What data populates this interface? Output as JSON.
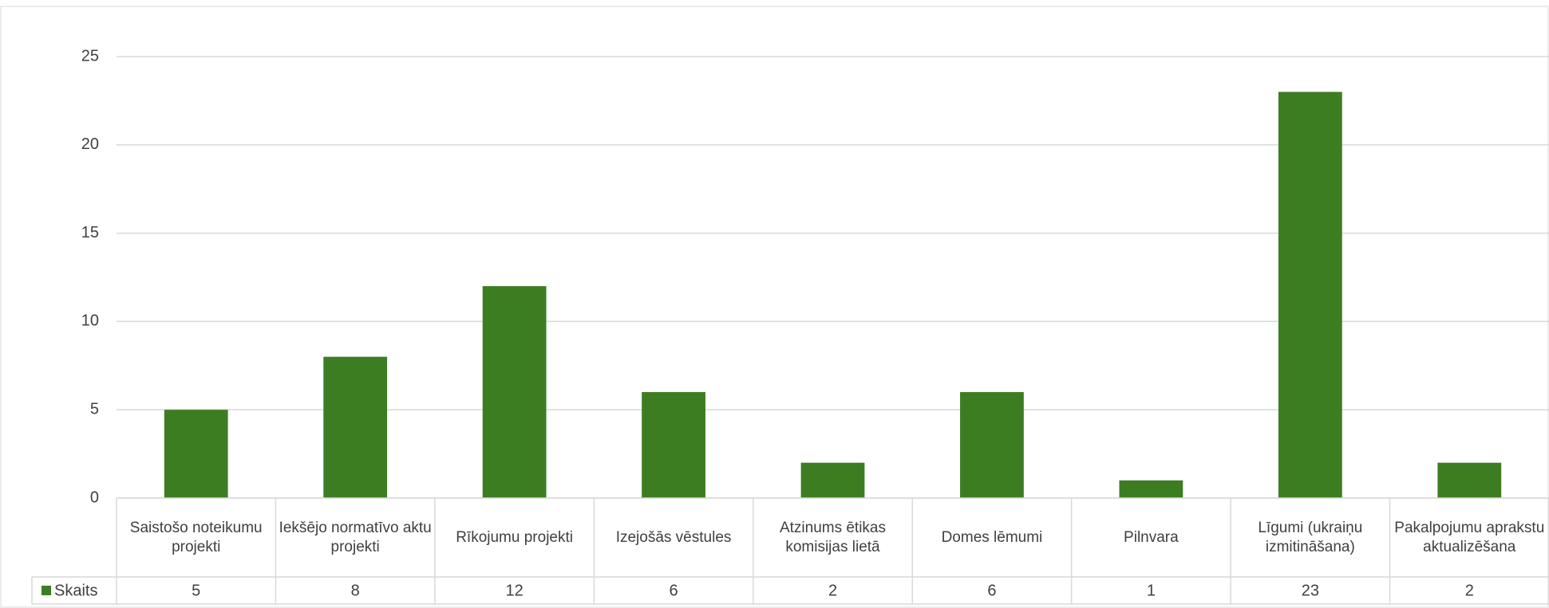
{
  "chart_data": {
    "type": "bar",
    "categories": [
      "Saistošo noteikumu projekti",
      "Iekšējo normatīvo aktu projekti",
      "Rīkojumu projekti",
      "Izejošās vēstules",
      "Atzinums ētikas komisijas lietā",
      "Domes lēmumi",
      "Pilnvara",
      "Līgumi (ukraiņu izmitināšana)",
      "Pakalpojumu aprakstu aktualizēšana"
    ],
    "series": [
      {
        "name": "Skaits",
        "color": "#3c7d22",
        "values": [
          5,
          8,
          12,
          6,
          2,
          6,
          1,
          23,
          2
        ]
      }
    ],
    "ylim": [
      0,
      25
    ],
    "yticks": [
      0,
      5,
      10,
      15,
      20,
      25
    ],
    "grid": true,
    "data_table": true
  }
}
